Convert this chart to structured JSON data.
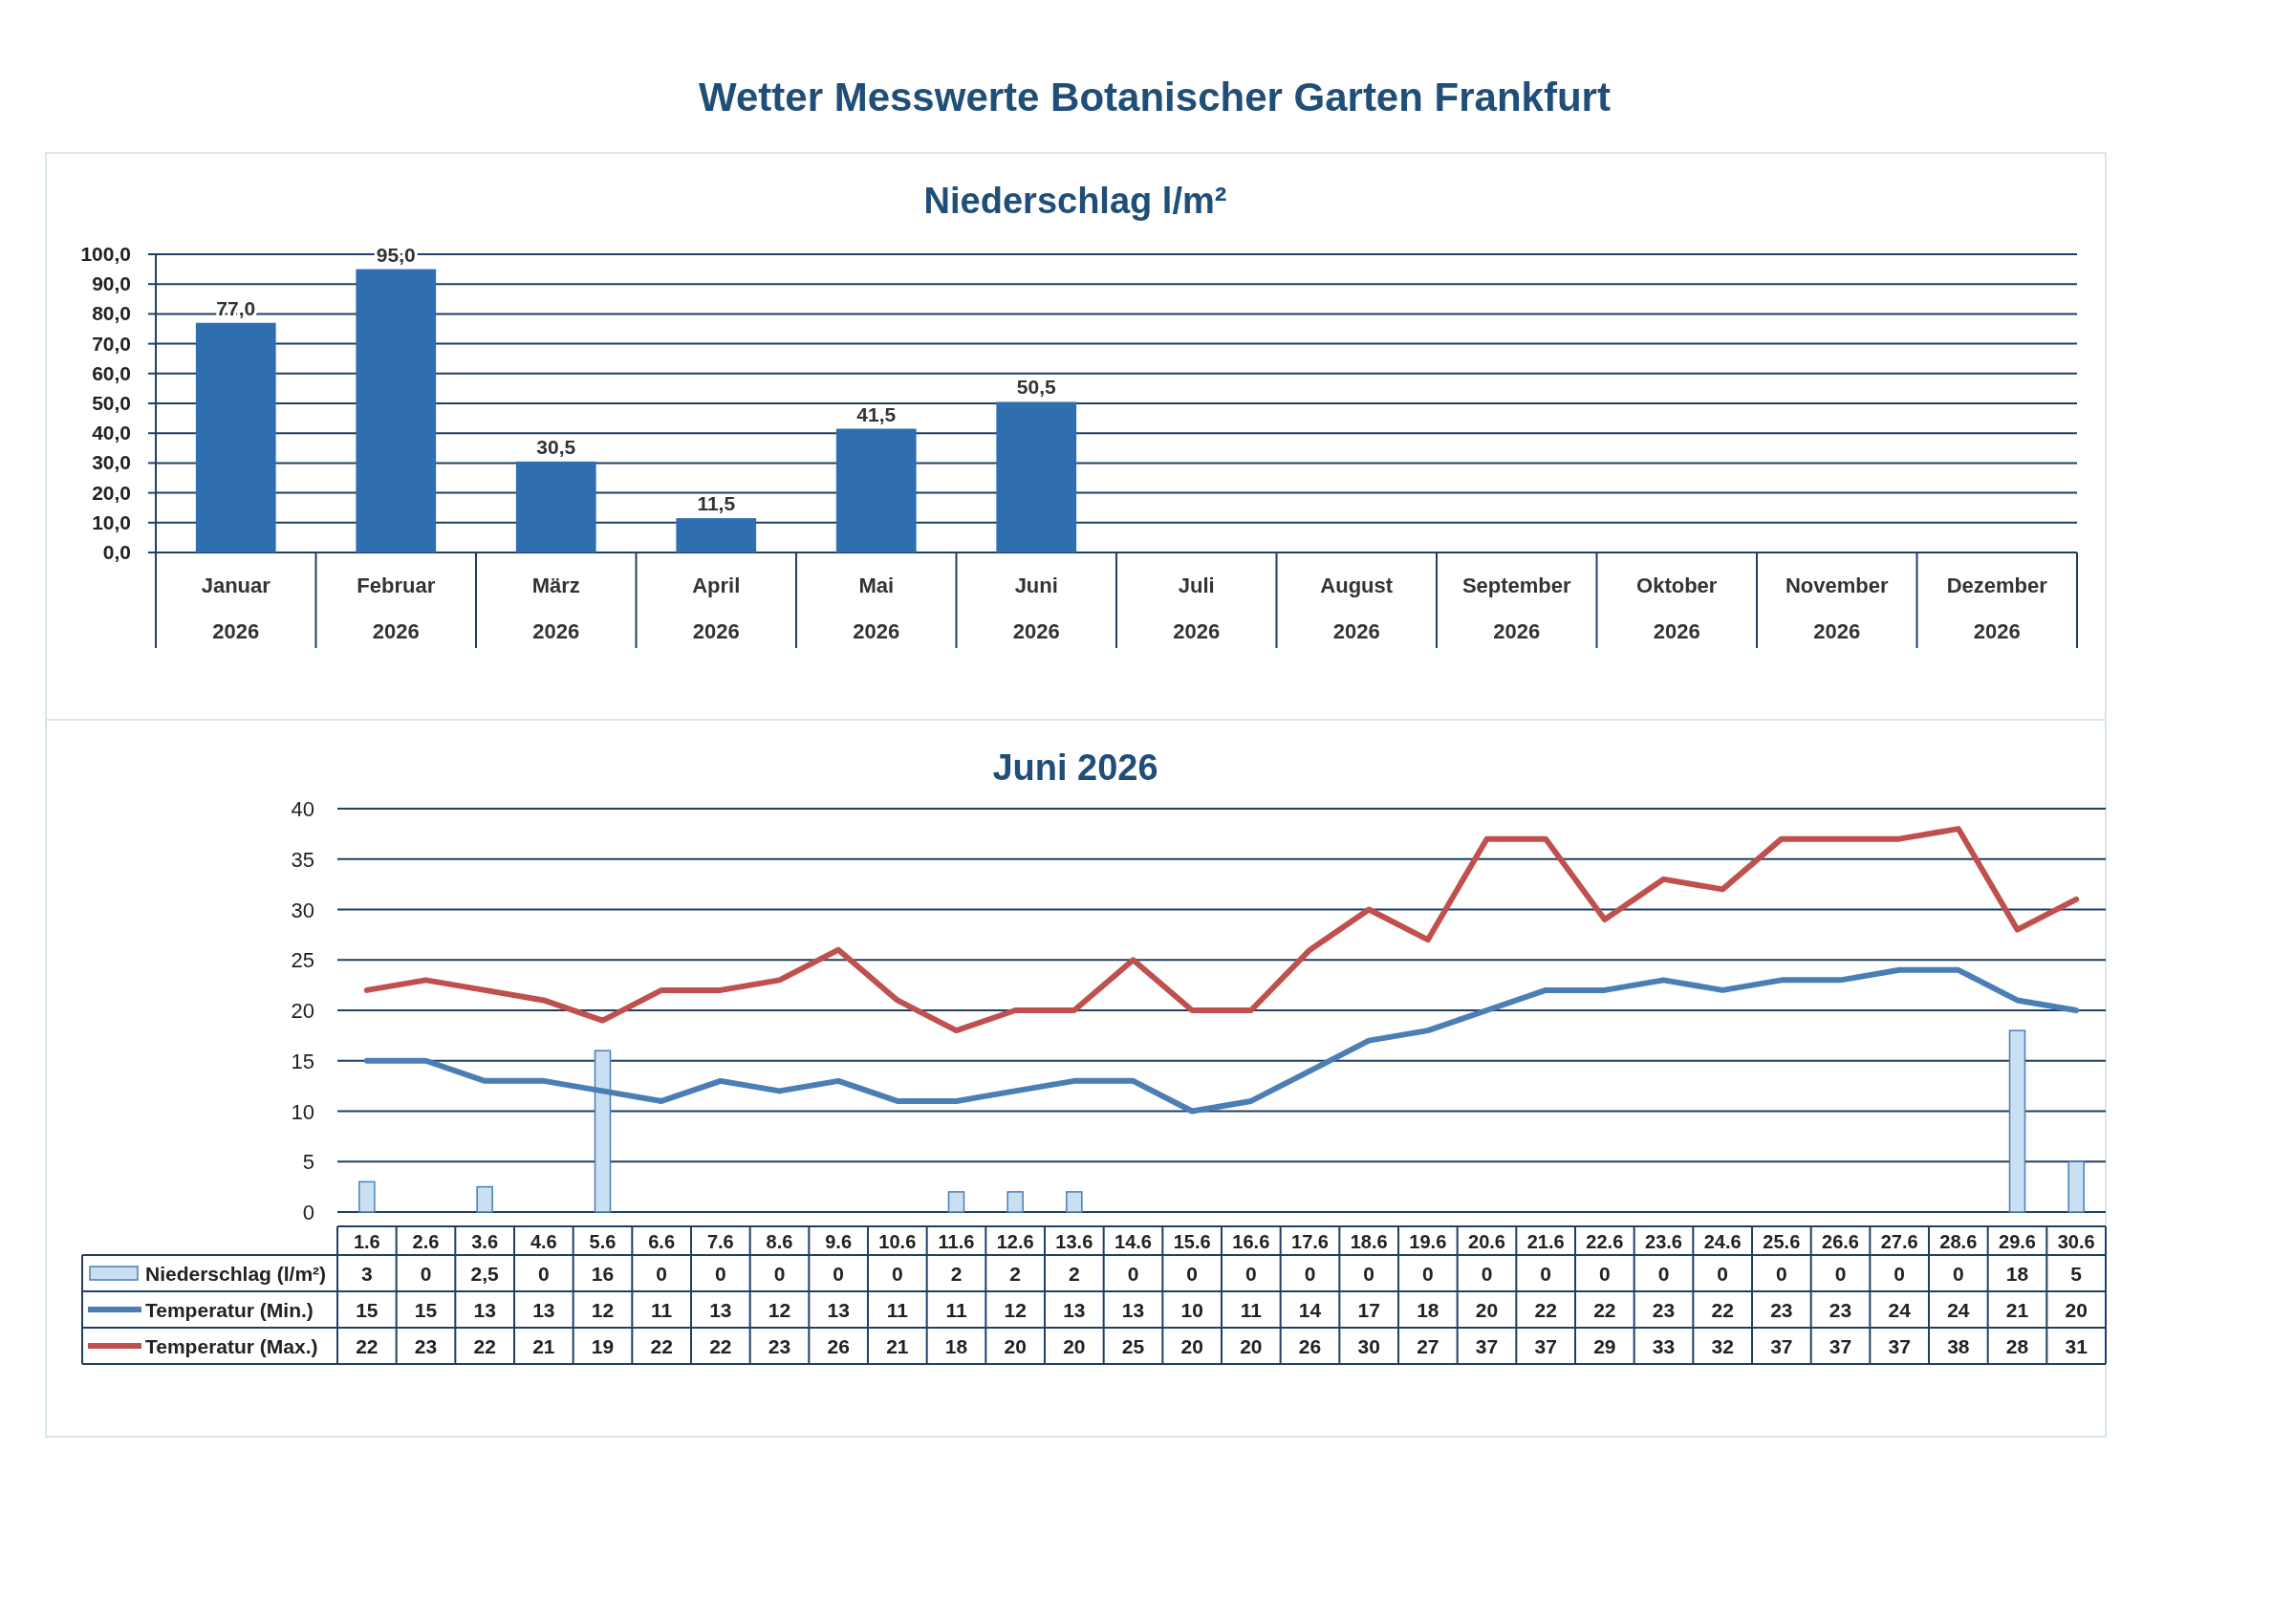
{
  "chart_data": [
    {
      "type": "bar",
      "title": "Niederschlag l/m²",
      "annotations": [
        "Wetter Messwerte Botanischer Garten Frankfurt"
      ],
      "categories": [
        "Januar 2026",
        "Februar 2026",
        "März 2026",
        "April 2026",
        "Mai 2026",
        "Juni 2026",
        "Juli 2026",
        "August 2026",
        "September 2026",
        "Oktober 2026",
        "November 2026",
        "Dezember 2026"
      ],
      "values": [
        77,
        95,
        30.5,
        11.5,
        41.5,
        50.5,
        null,
        null,
        null,
        null,
        null,
        null
      ],
      "value_labels": [
        "77,0",
        "95,0",
        "30,5",
        "11,5",
        "41,5",
        "50,5",
        null,
        null,
        null,
        null,
        null,
        null
      ],
      "color": "#2f6fb0",
      "ylim": [
        0,
        100
      ],
      "yticks": [
        {
          "value": 0,
          "label": "0,0"
        },
        {
          "value": 10,
          "label": "10,0"
        },
        {
          "value": 20,
          "label": "20,0"
        },
        {
          "value": 30,
          "label": "30,0"
        },
        {
          "value": 40,
          "label": "40,0"
        },
        {
          "value": 50,
          "label": "50,0"
        },
        {
          "value": 60,
          "label": "60,0"
        },
        {
          "value": 70,
          "label": "70,0"
        },
        {
          "value": 80,
          "label": "80,0"
        },
        {
          "value": 90,
          "label": "90,0"
        },
        {
          "value": 100,
          "label": "100,0"
        }
      ],
      "grid": "y"
    },
    {
      "type": "bar",
      "title": "Juni 2026",
      "categories": [
        "1.6",
        "2.6",
        "3.6",
        "4.6",
        "5.6",
        "6.6",
        "7.6",
        "8.6",
        "9.6",
        "10.6",
        "11.6",
        "12.6",
        "13.6",
        "14.6",
        "15.6",
        "16.6",
        "17.6",
        "18.6",
        "19.6",
        "20.6",
        "21.6",
        "22.6",
        "23.6",
        "24.6",
        "25.6",
        "26.6",
        "27.6",
        "28.6",
        "29.6",
        "30.6"
      ],
      "series": [
        {
          "name": "Niederschlag (l/m²)",
          "type": "bar",
          "color": "#c9e0f3",
          "values": [
            3,
            0,
            2.5,
            0,
            16,
            0,
            0,
            0,
            0,
            0,
            2,
            2,
            2,
            0,
            0,
            0,
            0,
            0,
            0,
            0,
            0,
            0,
            0,
            0,
            0,
            0,
            0,
            0,
            18,
            5
          ],
          "value_labels": [
            "3",
            "0",
            "2,5",
            "0",
            "16",
            "0",
            "0",
            "0",
            "0",
            "0",
            "2",
            "2",
            "2",
            "0",
            "0",
            "0",
            "0",
            "0",
            "0",
            "0",
            "0",
            "0",
            "0",
            "0",
            "0",
            "0",
            "0",
            "0",
            "18",
            "5"
          ]
        },
        {
          "name": "Temperatur (Min.)",
          "type": "line",
          "color": "#4a7eb5",
          "values": [
            15,
            15,
            13,
            13,
            12,
            11,
            13,
            12,
            13,
            11,
            11,
            12,
            13,
            13,
            10,
            11,
            14,
            17,
            18,
            20,
            22,
            22,
            23,
            22,
            23,
            23,
            24,
            24,
            21,
            20
          ],
          "value_labels": [
            "15",
            "15",
            "13",
            "13",
            "12",
            "11",
            "13",
            "12",
            "13",
            "11",
            "11",
            "12",
            "13",
            "13",
            "10",
            "11",
            "14",
            "17",
            "18",
            "20",
            "22",
            "22",
            "23",
            "22",
            "23",
            "23",
            "24",
            "24",
            "21",
            "20"
          ]
        },
        {
          "name": "Temperatur (Max.)",
          "type": "line",
          "color": "#c0504d",
          "values": [
            22,
            23,
            22,
            21,
            19,
            22,
            22,
            23,
            26,
            21,
            18,
            20,
            20,
            25,
            20,
            20,
            26,
            30,
            27,
            37,
            37,
            29,
            33,
            32,
            37,
            37,
            37,
            38,
            28,
            31
          ],
          "value_labels": [
            "22",
            "23",
            "22",
            "21",
            "19",
            "22",
            "22",
            "23",
            "26",
            "21",
            "18",
            "20",
            "20",
            "25",
            "20",
            "20",
            "26",
            "30",
            "27",
            "37",
            "37",
            "29",
            "33",
            "32",
            "37",
            "37",
            "37",
            "38",
            "28",
            "31"
          ]
        }
      ],
      "ylim": [
        0,
        40
      ],
      "yticks": [
        0,
        5,
        10,
        15,
        20,
        25,
        30,
        35,
        40
      ],
      "grid": "y",
      "legend": "bottom"
    }
  ]
}
